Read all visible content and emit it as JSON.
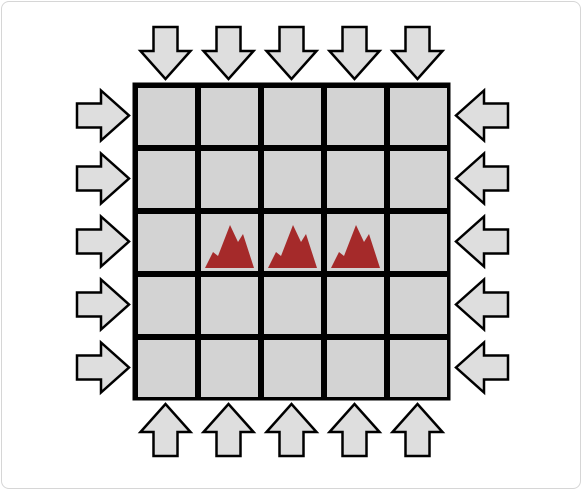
{
  "board": {
    "rows": 5,
    "cols": 5,
    "cell_color": "#d3d3d3",
    "line_color": "#000000"
  },
  "arrows": {
    "fill": "#dedede",
    "stroke": "#000000",
    "top": {
      "count": 5,
      "direction": "down"
    },
    "bottom": {
      "count": 5,
      "direction": "up"
    },
    "left": {
      "count": 5,
      "direction": "right"
    },
    "right": {
      "count": 5,
      "direction": "left"
    }
  },
  "mountains": {
    "color": "#a52a2a",
    "cells": [
      {
        "row": 2,
        "col": 1
      },
      {
        "row": 2,
        "col": 2
      },
      {
        "row": 2,
        "col": 3
      }
    ]
  }
}
